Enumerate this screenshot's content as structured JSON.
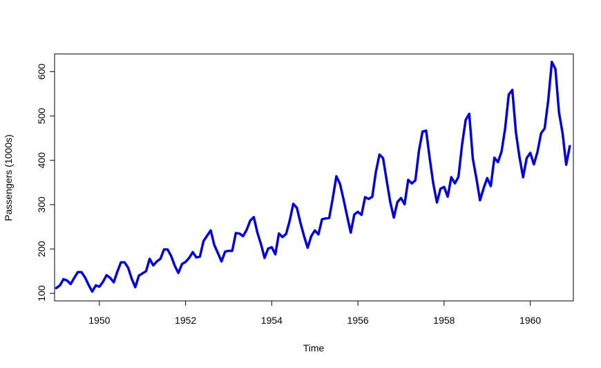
{
  "chart_data": {
    "type": "line",
    "title": "",
    "xlabel": "Time",
    "ylabel": "Passengers (1000s)",
    "xlim": [
      1948.96,
      1961.0
    ],
    "ylim": [
      83,
      640
    ],
    "grid": false,
    "legend": "none",
    "x_ticks": [
      1950,
      1952,
      1954,
      1956,
      1958,
      1960
    ],
    "y_ticks": [
      100,
      200,
      300,
      400,
      500,
      600
    ],
    "x_start": 1949.0,
    "x_step": 0.083333,
    "series": [
      {
        "color": "#0000ee",
        "values": [
          112,
          118,
          132,
          129,
          121,
          135,
          148,
          148,
          136,
          119,
          104,
          118,
          115,
          126,
          141,
          135,
          125,
          149,
          170,
          170,
          158,
          133,
          114,
          140,
          145,
          150,
          178,
          163,
          172,
          178,
          199,
          199,
          184,
          162,
          146,
          166,
          171,
          180,
          193,
          181,
          183,
          218,
          230,
          242,
          209,
          191,
          172,
          194,
          196,
          196,
          236,
          235,
          229,
          243,
          264,
          272,
          237,
          211,
          180,
          201,
          204,
          188,
          235,
          227,
          234,
          264,
          302,
          293,
          259,
          229,
          203,
          229,
          242,
          233,
          267,
          269,
          270,
          315,
          364,
          347,
          312,
          274,
          237,
          278,
          284,
          277,
          317,
          313,
          318,
          374,
          413,
          405,
          355,
          306,
          271,
          306,
          315,
          301,
          356,
          348,
          355,
          422,
          465,
          467,
          404,
          347,
          305,
          336,
          340,
          318,
          362,
          348,
          363,
          435,
          491,
          505,
          404,
          359,
          310,
          337,
          360,
          342,
          406,
          396,
          420,
          472,
          548,
          559,
          463,
          407,
          362,
          405,
          417,
          391,
          419,
          461,
          472,
          535,
          622,
          606,
          508,
          461,
          390,
          432
        ]
      }
    ]
  }
}
